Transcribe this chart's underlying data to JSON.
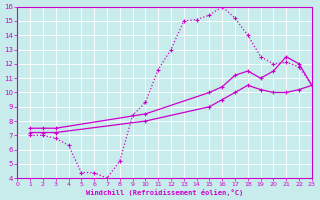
{
  "xlabel": "Windchill (Refroidissement éolien,°C)",
  "bg_color": "#c8ecec",
  "line_color": "#cc00cc",
  "grid_color": "#ffffff",
  "spine_color": "#cc00cc",
  "xlim": [
    0,
    23
  ],
  "ylim": [
    4,
    16
  ],
  "xticks": [
    0,
    1,
    2,
    3,
    4,
    5,
    6,
    7,
    8,
    9,
    10,
    11,
    12,
    13,
    14,
    15,
    16,
    17,
    18,
    19,
    20,
    21,
    22,
    23
  ],
  "yticks": [
    4,
    5,
    6,
    7,
    8,
    9,
    10,
    11,
    12,
    13,
    14,
    15,
    16
  ],
  "line1_x": [
    1,
    2,
    3,
    4,
    5,
    6,
    7,
    8,
    9,
    10,
    11,
    12,
    13,
    14,
    15,
    16,
    17,
    18,
    19,
    20,
    21,
    22,
    23
  ],
  "line1_y": [
    7.0,
    7.0,
    6.8,
    6.3,
    4.4,
    4.4,
    4.0,
    5.2,
    8.4,
    9.3,
    11.6,
    13.0,
    15.0,
    15.1,
    15.4,
    16.0,
    15.2,
    14.0,
    12.5,
    12.0,
    12.1,
    11.8,
    10.5
  ],
  "line2_x": [
    1,
    2,
    3,
    10,
    15,
    16,
    17,
    18,
    19,
    20,
    21,
    22,
    23
  ],
  "line2_y": [
    7.5,
    7.5,
    7.5,
    8.5,
    10.0,
    10.4,
    11.2,
    11.5,
    11.0,
    11.5,
    12.5,
    12.0,
    10.5
  ],
  "line3_x": [
    1,
    2,
    3,
    10,
    15,
    16,
    17,
    18,
    19,
    20,
    21,
    22,
    23
  ],
  "line3_y": [
    7.2,
    7.2,
    7.2,
    8.0,
    9.0,
    9.5,
    10.0,
    10.5,
    10.2,
    10.0,
    10.0,
    10.2,
    10.5
  ]
}
